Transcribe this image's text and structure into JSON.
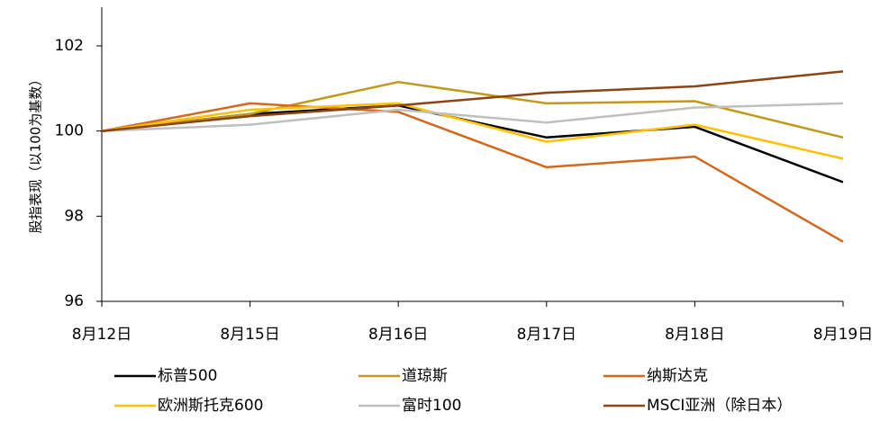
{
  "chart_data": {
    "type": "line",
    "ylabel": "股指表现（以100为基数）",
    "categories": [
      "8月12日",
      "8月15日",
      "8月16日",
      "8月17日",
      "8月18日",
      "8月19日"
    ],
    "ylim": [
      96,
      103
    ],
    "yticks": [
      96,
      98,
      100,
      102
    ],
    "legend_position": "bottom",
    "grid": false,
    "series": [
      {
        "name": "标普500",
        "color": "#000000",
        "values": [
          100.0,
          100.4,
          100.6,
          99.85,
          100.1,
          98.8
        ]
      },
      {
        "name": "道琼斯",
        "color": "#C09A1A",
        "values": [
          100.0,
          100.4,
          101.15,
          100.65,
          100.7,
          99.85
        ]
      },
      {
        "name": "纳斯达克",
        "color": "#D2691E",
        "values": [
          100.0,
          100.65,
          100.45,
          99.15,
          99.4,
          97.4
        ]
      },
      {
        "name": "欧洲斯托克600",
        "color": "#FFC000",
        "values": [
          100.0,
          100.5,
          100.65,
          99.75,
          100.15,
          99.35
        ]
      },
      {
        "name": "富时100",
        "color": "#BFBFBF",
        "values": [
          100.0,
          100.15,
          100.5,
          100.2,
          100.55,
          100.65
        ]
      },
      {
        "name": "MSCI亚洲（除日本）",
        "color": "#8B4513",
        "values": [
          100.0,
          100.35,
          100.6,
          100.9,
          101.05,
          101.4
        ]
      }
    ]
  }
}
